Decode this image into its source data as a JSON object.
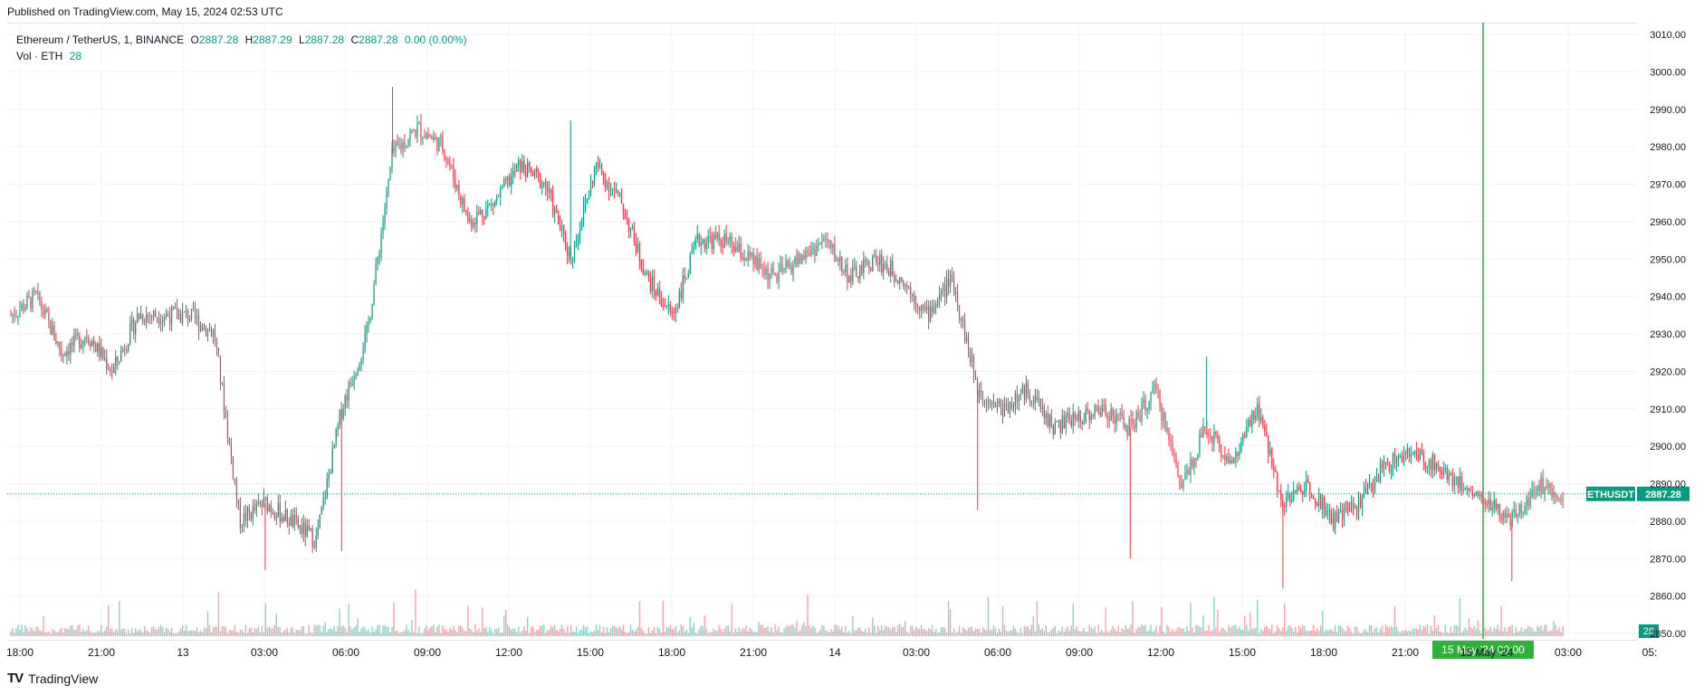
{
  "header": {
    "published": "Published on TradingView.com, May 15, 2024 02:53 UTC"
  },
  "legend": {
    "symbol": "Ethereum / TetherUS, 1, BINANCE",
    "o_label": "O",
    "o_value": "2887.28",
    "h_label": "H",
    "h_value": "2887.29",
    "l_label": "L",
    "l_value": "2887.28",
    "c_label": "C",
    "c_value": "2887.28",
    "change": "0.00 (0.00%)",
    "vol_label": "Vol · ETH",
    "vol_value": "28"
  },
  "footer": {
    "brand": "TradingView",
    "logo": "TV"
  },
  "colors": {
    "up": "#089981",
    "down": "#f23645",
    "grid": "#f0f3fa",
    "axis_text": "#131722",
    "crosshair": "#2db13a"
  },
  "chart_data": {
    "type": "candlestick",
    "symbol": "ETHUSDT",
    "last_price": "2887.28",
    "last_volume": "28",
    "crosshair_label": "15 May '24   00:00",
    "ylim": [
      2850,
      3010
    ],
    "y_ticks": [
      "3010.00",
      "3000.00",
      "2990.00",
      "2980.00",
      "2970.00",
      "2960.00",
      "2950.00",
      "2940.00",
      "2930.00",
      "2920.00",
      "2910.00",
      "2900.00",
      "2890.00",
      "2880.00",
      "2870.00",
      "2860.00",
      "2850.00"
    ],
    "x_ticks": [
      "18:00",
      "21:00",
      "13",
      "03:00",
      "06:00",
      "09:00",
      "12:00",
      "15:00",
      "18:00",
      "21:00",
      "14",
      "03:00",
      "06:00",
      "09:00",
      "12:00",
      "15:00",
      "18:00",
      "21:00",
      "15 May '24",
      "03:00",
      "05:"
    ],
    "price_path": [
      [
        0,
        2935
      ],
      [
        1,
        2940
      ],
      [
        2,
        2925
      ],
      [
        3,
        2930
      ],
      [
        4,
        2920
      ],
      [
        5,
        2935
      ],
      [
        6,
        2935
      ],
      [
        7,
        2935
      ],
      [
        8,
        2930
      ],
      [
        9,
        2880
      ],
      [
        10,
        2885
      ],
      [
        11,
        2880
      ],
      [
        12,
        2875
      ],
      [
        13,
        2910
      ],
      [
        14,
        2930
      ],
      [
        15,
        2978
      ],
      [
        16,
        2985
      ],
      [
        17,
        2980
      ],
      [
        18,
        2960
      ],
      [
        19,
        2965
      ],
      [
        20,
        2975
      ],
      [
        21,
        2970
      ],
      [
        22,
        2950
      ],
      [
        23,
        2975
      ],
      [
        24,
        2965
      ],
      [
        25,
        2945
      ],
      [
        26,
        2935
      ],
      [
        27,
        2955
      ],
      [
        28,
        2955
      ],
      [
        29,
        2950
      ],
      [
        30,
        2945
      ],
      [
        31,
        2950
      ],
      [
        32,
        2955
      ],
      [
        33,
        2945
      ],
      [
        34,
        2950
      ],
      [
        35,
        2945
      ],
      [
        36,
        2935
      ],
      [
        37,
        2945
      ],
      [
        38,
        2915
      ],
      [
        39,
        2910
      ],
      [
        40,
        2915
      ],
      [
        41,
        2905
      ],
      [
        42,
        2908
      ],
      [
        43,
        2910
      ],
      [
        44,
        2905
      ],
      [
        45,
        2915
      ],
      [
        46,
        2890
      ],
      [
        47,
        2905
      ],
      [
        48,
        2895
      ],
      [
        49,
        2910
      ],
      [
        50,
        2885
      ],
      [
        51,
        2890
      ],
      [
        52,
        2880
      ],
      [
        53,
        2885
      ],
      [
        54,
        2895
      ],
      [
        55,
        2898
      ],
      [
        56,
        2895
      ],
      [
        57,
        2890
      ],
      [
        58,
        2885
      ],
      [
        59,
        2880
      ],
      [
        60,
        2890
      ],
      [
        61,
        2887.28
      ]
    ],
    "highs": [
      [
        15,
        2996
      ],
      [
        22,
        2987
      ],
      [
        47,
        2924
      ]
    ],
    "lows": [
      [
        10,
        2867
      ],
      [
        13,
        2872
      ],
      [
        38,
        2883
      ],
      [
        44,
        2870
      ],
      [
        50,
        2862
      ],
      [
        59,
        2864
      ]
    ]
  }
}
